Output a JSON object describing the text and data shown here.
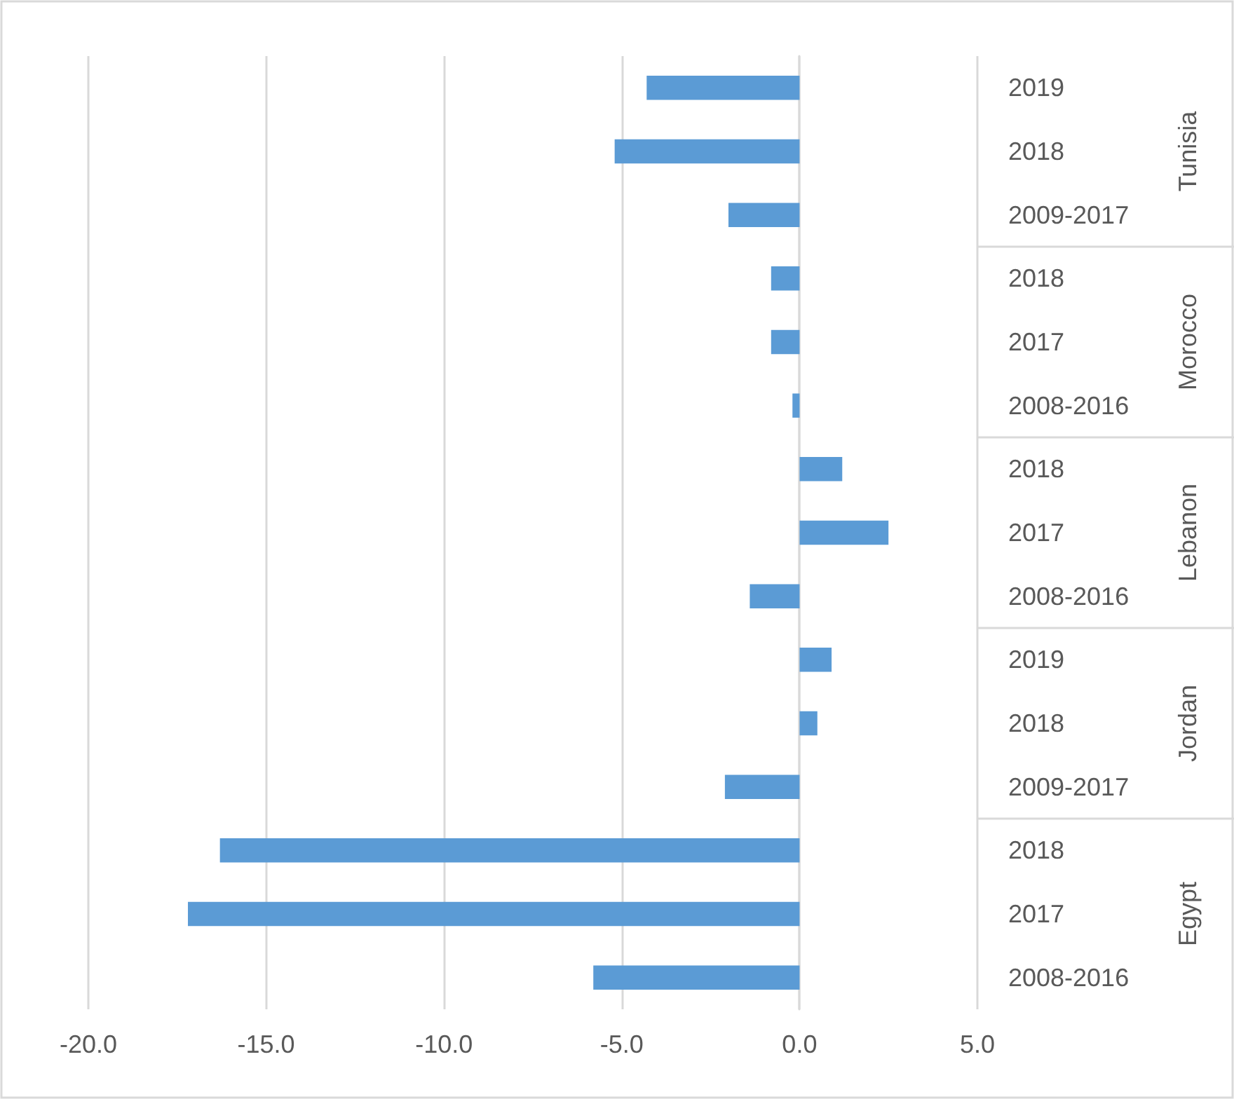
{
  "chart_data": {
    "type": "bar",
    "orientation": "horizontal",
    "categories": [
      "2019",
      "2018",
      "2009-2017",
      "2018",
      "2017",
      "2008-2016",
      "2018",
      "2017",
      "2008-2016",
      "2019",
      "2018",
      "2009-2017",
      "2018",
      "2017",
      "2008-2016"
    ],
    "values": [
      -4.3,
      -5.2,
      -2.0,
      -0.8,
      -0.8,
      -0.2,
      1.2,
      2.5,
      -1.4,
      0.9,
      0.5,
      -2.1,
      -16.3,
      -17.2,
      -5.8
    ],
    "color": "#5b9bd5",
    "xlim": [
      -20,
      5
    ],
    "xticks": [
      {
        "value": -20,
        "label": "-20.0"
      },
      {
        "value": -15,
        "label": "-15.0"
      },
      {
        "value": -10,
        "label": "-10.0"
      },
      {
        "value": -5,
        "label": "-5.0"
      },
      {
        "value": 0,
        "label": "0.0"
      },
      {
        "value": 5,
        "label": "5.0"
      }
    ],
    "grid": "x",
    "annotations": [
      "Tunisia",
      "Morocco",
      "Lebanon",
      "Jordan",
      "Egypt"
    ]
  }
}
